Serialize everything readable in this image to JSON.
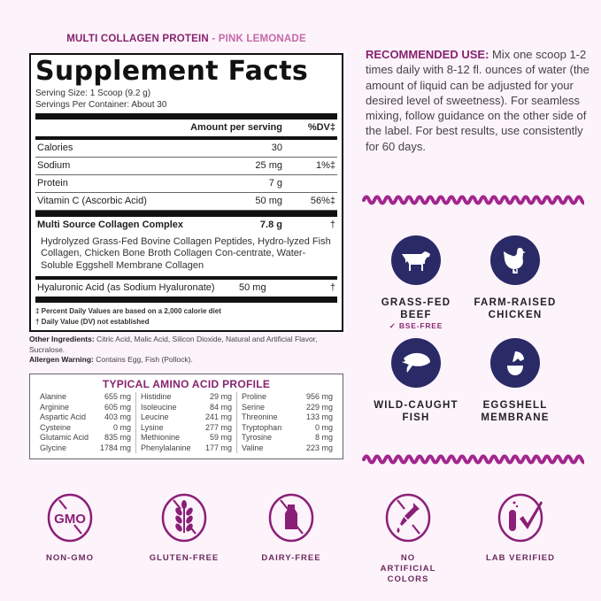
{
  "product": {
    "name": "MULTI COLLAGEN PROTEIN",
    "separator": " - ",
    "flavor": "PINK LEMONADE"
  },
  "facts": {
    "title": "Supplement Facts",
    "serving_size": "Serving Size: 1 Scoop (9.2 g)",
    "servings": "Servings Per Container: About 30",
    "header_amount": "Amount per serving",
    "header_dv": "%DV‡",
    "rows": [
      {
        "name": "Calories",
        "amount": "30",
        "dv": ""
      },
      {
        "name": "Sodium",
        "amount": "25 mg",
        "dv": "1%‡"
      },
      {
        "name": "Protein",
        "amount": "7 g",
        "dv": ""
      },
      {
        "name": "Vitamin C (Ascorbic Acid)",
        "amount": "50 mg",
        "dv": "56%‡"
      }
    ],
    "complex": {
      "name": "Multi Source Collagen Complex",
      "amount": "7.8 g",
      "dv": "†",
      "description": "Hydrolyzed Grass-Fed Bovine Collagen Peptides, Hydro-lyzed Fish Collagen, Chicken Bone Broth Collagen Con-centrate, Water-Soluble Eggshell Membrane Collagen"
    },
    "hyaluronic": {
      "name": "Hyaluronic Acid (as Sodium Hyaluronate)",
      "amount": "50 mg",
      "dv": "†"
    },
    "foot1": "‡ Percent Daily Values are based on a 2,000 calorie diet",
    "foot2": "† Daily Value (DV) not established"
  },
  "other": {
    "label": "Other Ingredients:",
    "text": " Citric Acid, Malic Acid, Silicon Dioxide, Natural and Artificial Flavor, Sucralose.",
    "allergen_label": "Allergen Warning:",
    "allergen": " Contains Egg, Fish (Pollock)."
  },
  "amino": {
    "title": "TYPICAL AMINO ACID PROFILE",
    "columns": [
      [
        [
          "Alanine",
          "655 mg"
        ],
        [
          "Arginine",
          "605 mg"
        ],
        [
          "Aspartic Acid",
          "403 mg"
        ],
        [
          "Cysteine",
          "0 mg"
        ],
        [
          "Glutamic Acid",
          "835 mg"
        ],
        [
          "Glycine",
          "1784 mg"
        ]
      ],
      [
        [
          "Histidine",
          "29 mg"
        ],
        [
          "Isoleucine",
          "84 mg"
        ],
        [
          "Leucine",
          "241 mg"
        ],
        [
          "Lysine",
          "277 mg"
        ],
        [
          "Methionine",
          "59 mg"
        ],
        [
          "Phenylalanine",
          "177 mg"
        ]
      ],
      [
        [
          "Proline",
          "956 mg"
        ],
        [
          "Serine",
          "229 mg"
        ],
        [
          "Threonine",
          "133 mg"
        ],
        [
          "Tryptophan",
          "0 mg"
        ],
        [
          "Tyrosine",
          "8 mg"
        ],
        [
          "Valine",
          "223 mg"
        ]
      ]
    ]
  },
  "recommended": {
    "label": "RECOMMENDED USE:",
    "text": " Mix one scoop 1-2 times daily with 8-12 fl. ounces of water (the amount of liquid can be adjusted for your desired level of sweetness). For seamless mixing, follow guidance on the other side of the label. For best results, use consistently for 60 days."
  },
  "sources": [
    {
      "icon": "cow-icon",
      "l1": "GRASS-FED",
      "l2": "BEEF",
      "note": "✓ BSE-FREE"
    },
    {
      "icon": "chicken-icon",
      "l1": "FARM-RAISED",
      "l2": "CHICKEN"
    },
    {
      "icon": "fish-icon",
      "l1": "WILD-CAUGHT",
      "l2": "FISH"
    },
    {
      "icon": "eggshell-icon",
      "l1": "EGGSHELL",
      "l2": "MEMBRANE"
    }
  ],
  "badges": [
    {
      "icon": "non-gmo-icon",
      "label": "NON-GMO",
      "glyph": "GMO"
    },
    {
      "icon": "gluten-free-icon",
      "label": "GLUTEN-FREE"
    },
    {
      "icon": "dairy-free-icon",
      "label": "DAIRY-FREE"
    },
    {
      "icon": "no-artificial-colors-icon",
      "label": "NO ARTIFICIAL COLORS"
    },
    {
      "icon": "lab-verified-icon",
      "label": "LAB VERIFIED"
    }
  ],
  "colors": {
    "accent": "#86236f",
    "wave": "#a3268d",
    "navy": "#2a2a66",
    "badge": "#8a1f77",
    "background": "#fdf3fb"
  }
}
